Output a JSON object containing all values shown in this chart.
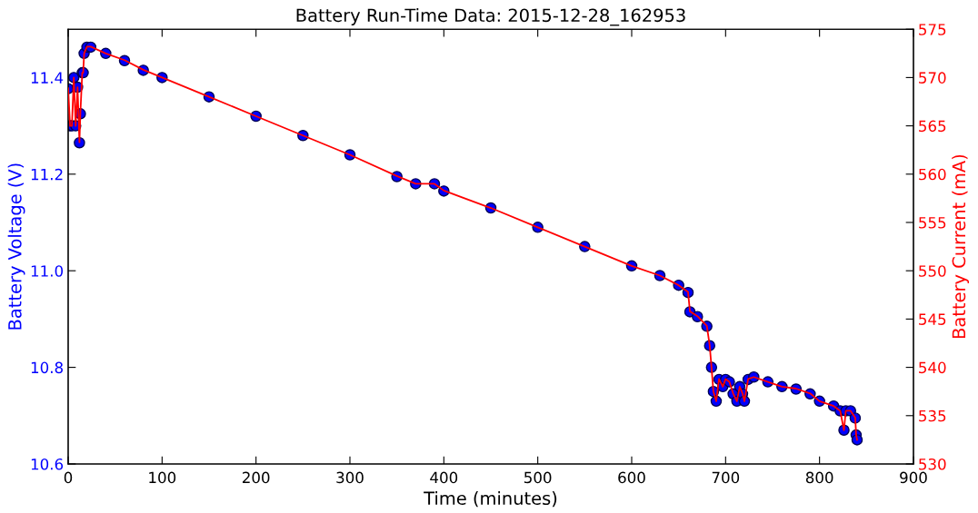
{
  "chart_data": {
    "type": "scatter",
    "title": "Battery Run-Time Data: 2015-12-28_162953",
    "xlabel": "Time (minutes)",
    "ylabel": "Battery Voltage (V)",
    "y2label": "Battery Current (mA)",
    "x": [
      0,
      2,
      4,
      6,
      8,
      10,
      12,
      13,
      15,
      16,
      17,
      20,
      24,
      40,
      60,
      80,
      100,
      150,
      200,
      250,
      300,
      350,
      370,
      390,
      400,
      450,
      500,
      550,
      600,
      630,
      650,
      660,
      662,
      670,
      680,
      683,
      685,
      687,
      690,
      693,
      697,
      700,
      704,
      708,
      712,
      715,
      718,
      720,
      724,
      730,
      745,
      760,
      775,
      790,
      800,
      815,
      822,
      826,
      828,
      833,
      838,
      839,
      840
    ],
    "series": [
      {
        "color": "#0000ff",
        "marker": "circle",
        "values": [
          11.377,
          11.3,
          11.3,
          11.4,
          11.3,
          11.38,
          11.265,
          11.325,
          11.41,
          11.41,
          11.45,
          11.463,
          11.463,
          11.45,
          11.435,
          11.415,
          11.4,
          11.36,
          11.32,
          11.28,
          11.24,
          11.195,
          11.18,
          11.18,
          11.165,
          11.13,
          11.09,
          11.05,
          11.01,
          10.99,
          10.97,
          10.955,
          10.915,
          10.905,
          10.885,
          10.845,
          10.8,
          10.75,
          10.73,
          10.775,
          10.76,
          10.775,
          10.77,
          10.745,
          10.73,
          10.76,
          10.745,
          10.73,
          10.775,
          10.78,
          10.77,
          10.76,
          10.755,
          10.745,
          10.73,
          10.72,
          10.71,
          10.67,
          10.71,
          10.71,
          10.695,
          10.66,
          10.65
        ]
      },
      {
        "type": "line",
        "axis": "y2",
        "marker": "none",
        "color": "#ff0000",
        "values": [
          568.9,
          565.0,
          565.0,
          570.0,
          565.0,
          569.0,
          563.3,
          566.3,
          570.5,
          570.5,
          572.5,
          573.2,
          573.2,
          572.5,
          571.8,
          570.8,
          570.0,
          568.0,
          566.0,
          564.0,
          562.0,
          559.8,
          559.0,
          559.0,
          558.3,
          556.5,
          554.5,
          552.5,
          550.5,
          549.5,
          548.5,
          547.8,
          545.8,
          545.3,
          544.3,
          542.3,
          540.0,
          537.5,
          536.5,
          538.8,
          538.0,
          538.8,
          538.5,
          537.3,
          536.5,
          538.0,
          537.3,
          536.5,
          538.8,
          539.0,
          538.5,
          538.0,
          537.8,
          537.3,
          536.5,
          536.0,
          535.5,
          533.5,
          535.5,
          535.5,
          534.8,
          533.0,
          532.5
        ]
      }
    ],
    "xlim": [
      0,
      900
    ],
    "xticks": [
      0,
      100,
      200,
      300,
      400,
      500,
      600,
      700,
      800,
      900
    ],
    "ylim": [
      10.6,
      11.5
    ],
    "yticks": [
      {
        "value": 10.6,
        "label": "10.6"
      },
      {
        "value": 10.8,
        "label": "10.8"
      },
      {
        "value": 11.0,
        "label": "11.0"
      },
      {
        "value": 11.2,
        "label": "11.2"
      },
      {
        "value": 11.4,
        "label": "11.4"
      }
    ],
    "y2lim": [
      530,
      575
    ],
    "y2ticks": [
      530,
      535,
      540,
      545,
      550,
      555,
      560,
      565,
      570,
      575
    ],
    "grid": false
  }
}
